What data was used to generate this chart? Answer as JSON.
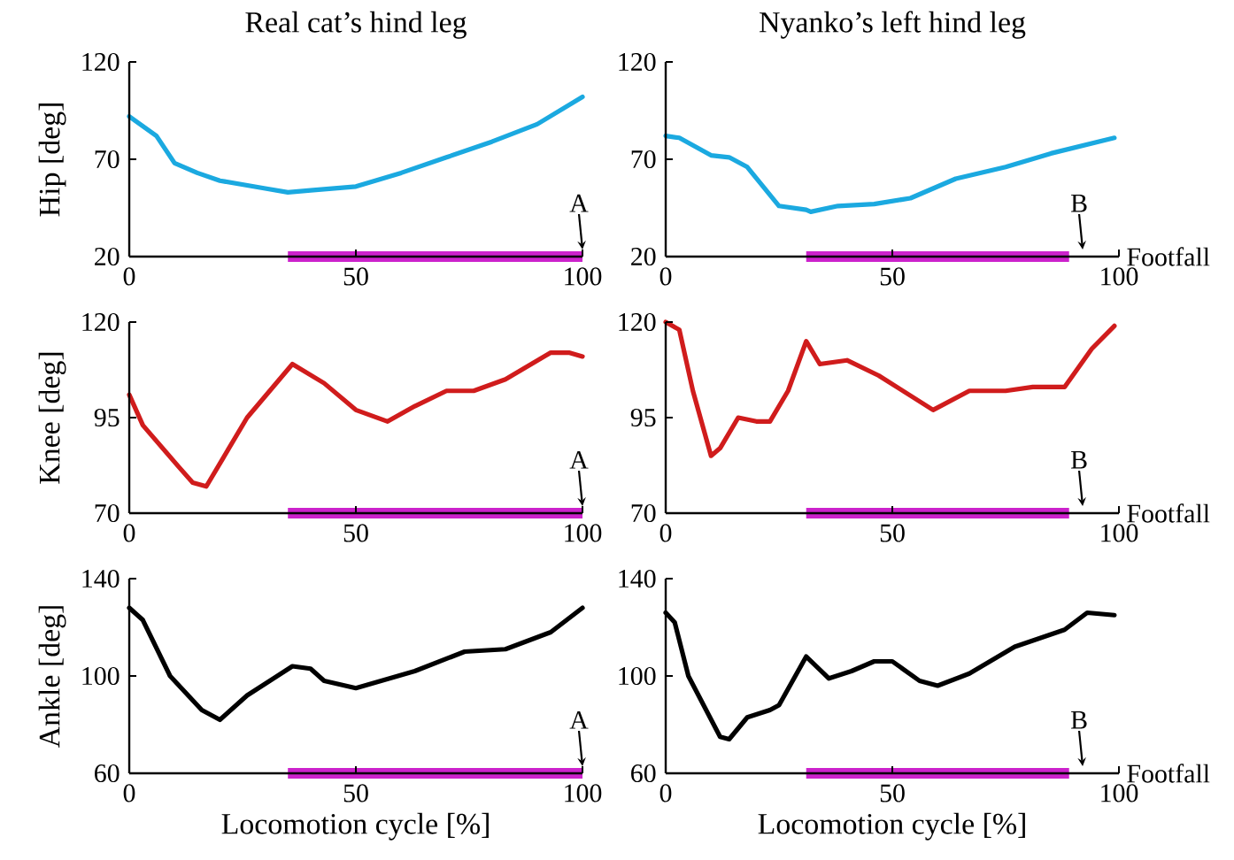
{
  "chart_data": [
    {
      "type": "line",
      "title": "Real cat’s hind leg",
      "ylabel": "Hip [deg]",
      "xlim": [
        0,
        100
      ],
      "ylim": [
        20,
        120
      ],
      "xticks": [
        0,
        50,
        100
      ],
      "yticks": [
        20,
        70,
        120
      ],
      "series": [
        {
          "color": "#1ba9e0",
          "x": [
            0,
            6,
            10,
            15,
            20,
            30,
            35,
            40,
            50,
            60,
            70,
            80,
            90,
            100
          ],
          "values": [
            92,
            82,
            68,
            63,
            59,
            55,
            53,
            54,
            56,
            63,
            71,
            79,
            88,
            102
          ]
        },
        {
          "color": "#cc22cc",
          "x": [
            35,
            100
          ],
          "values": [
            20,
            20
          ]
        }
      ],
      "annotations": [
        "A"
      ]
    },
    {
      "type": "line",
      "title": "Nyanko’s left hind leg",
      "xlim": [
        0,
        100
      ],
      "ylim": [
        20,
        120
      ],
      "xticks": [
        0,
        50,
        100
      ],
      "yticks": [
        20,
        70,
        120
      ],
      "series": [
        {
          "color": "#1ba9e0",
          "x": [
            0,
            3,
            10,
            14,
            18,
            25,
            31,
            32,
            38,
            46,
            54,
            64,
            75,
            85,
            99
          ],
          "values": [
            82,
            81,
            72,
            71,
            66,
            46,
            44,
            43,
            46,
            47,
            50,
            60,
            66,
            73,
            81
          ]
        },
        {
          "color": "#cc22cc",
          "x": [
            31,
            89
          ],
          "values": [
            20,
            20
          ]
        }
      ],
      "annotations": [
        "Footfall",
        "B"
      ]
    },
    {
      "type": "line",
      "ylabel": "Knee [deg]",
      "xlim": [
        0,
        100
      ],
      "ylim": [
        70,
        120
      ],
      "xticks": [
        0,
        50,
        100
      ],
      "yticks": [
        70,
        95,
        120
      ],
      "series": [
        {
          "color": "#d01c1c",
          "x": [
            0,
            3,
            11,
            14,
            17,
            26,
            36,
            43,
            50,
            57,
            63,
            70,
            76,
            83,
            93,
            97,
            100
          ],
          "values": [
            101,
            93,
            82,
            78,
            77,
            95,
            109,
            104,
            97,
            94,
            98,
            102,
            102,
            105,
            112,
            112,
            111
          ]
        },
        {
          "color": "#cc22cc",
          "x": [
            35,
            100
          ],
          "values": [
            70,
            70
          ]
        }
      ],
      "annotations": [
        "A"
      ]
    },
    {
      "type": "line",
      "xlim": [
        0,
        100
      ],
      "ylim": [
        70,
        120
      ],
      "xticks": [
        0,
        50,
        100
      ],
      "yticks": [
        70,
        95,
        120
      ],
      "series": [
        {
          "color": "#d01c1c",
          "x": [
            0,
            3,
            6,
            10,
            12,
            16,
            20,
            23,
            27,
            31,
            34,
            40,
            47,
            59,
            67,
            75,
            81,
            88,
            94,
            99
          ],
          "values": [
            120,
            118,
            102,
            85,
            87,
            95,
            94,
            94,
            102,
            115,
            109,
            110,
            106,
            97,
            102,
            102,
            103,
            103,
            113,
            119
          ]
        },
        {
          "color": "#cc22cc",
          "x": [
            31,
            89
          ],
          "values": [
            70,
            70
          ]
        }
      ],
      "annotations": [
        "Footfall",
        "B"
      ]
    },
    {
      "type": "line",
      "ylabel": "Ankle [deg]",
      "xlabel": "Locomotion cycle [%]",
      "xlim": [
        0,
        100
      ],
      "ylim": [
        60,
        140
      ],
      "xticks": [
        0,
        50,
        100
      ],
      "yticks": [
        60,
        100,
        140
      ],
      "series": [
        {
          "color": "#000000",
          "x": [
            0,
            3,
            9,
            16,
            20,
            26,
            36,
            40,
            43,
            50,
            63,
            74,
            83,
            93,
            100
          ],
          "values": [
            128,
            123,
            100,
            86,
            82,
            92,
            104,
            103,
            98,
            95,
            102,
            110,
            111,
            118,
            128
          ]
        },
        {
          "color": "#cc22cc",
          "x": [
            35,
            100
          ],
          "values": [
            60,
            60
          ]
        }
      ],
      "annotations": [
        "A"
      ]
    },
    {
      "type": "line",
      "xlabel": "Locomotion cycle [%]",
      "xlim": [
        0,
        100
      ],
      "ylim": [
        60,
        140
      ],
      "xticks": [
        0,
        50,
        100
      ],
      "yticks": [
        60,
        100,
        140
      ],
      "series": [
        {
          "color": "#000000",
          "x": [
            0,
            2,
            5,
            12,
            14,
            18,
            23,
            25,
            31,
            36,
            41,
            46,
            50,
            56,
            60,
            67,
            77,
            88,
            93,
            99
          ],
          "values": [
            126,
            122,
            100,
            75,
            74,
            83,
            86,
            88,
            108,
            99,
            102,
            106,
            106,
            98,
            96,
            101,
            112,
            119,
            126,
            125
          ]
        },
        {
          "color": "#cc22cc",
          "x": [
            31,
            89
          ],
          "values": [
            60,
            60
          ]
        }
      ],
      "annotations": [
        "Footfall",
        "B"
      ]
    }
  ]
}
